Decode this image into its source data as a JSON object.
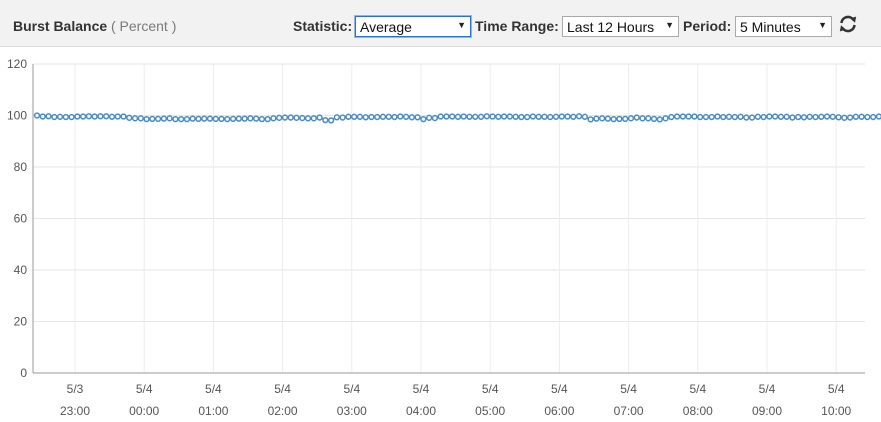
{
  "header": {
    "title": "Burst Balance",
    "unit": "( Percent )",
    "statistic_label": "Statistic:",
    "statistic_value": "Average",
    "time_range_label": "Time Range:",
    "time_range_value": "Last 12 Hours",
    "period_label": "Period:",
    "period_value": "5 Minutes",
    "refresh_icon": "refresh-icon"
  },
  "chart_data": {
    "type": "line",
    "ylim": [
      0,
      120
    ],
    "yticks": [
      "0",
      "20",
      "40",
      "60",
      "80",
      "100",
      "120"
    ],
    "xticks": [
      {
        "date": "5/3",
        "time": "23:00"
      },
      {
        "date": "5/4",
        "time": "00:00"
      },
      {
        "date": "5/4",
        "time": "01:00"
      },
      {
        "date": "5/4",
        "time": "02:00"
      },
      {
        "date": "5/4",
        "time": "03:00"
      },
      {
        "date": "5/4",
        "time": "04:00"
      },
      {
        "date": "5/4",
        "time": "05:00"
      },
      {
        "date": "5/4",
        "time": "06:00"
      },
      {
        "date": "5/4",
        "time": "07:00"
      },
      {
        "date": "5/4",
        "time": "08:00"
      },
      {
        "date": "5/4",
        "time": "09:00"
      },
      {
        "date": "5/4",
        "time": "10:00"
      }
    ],
    "x_start": "5/3 22:30",
    "x_interval": "5 Minutes",
    "series": [
      {
        "color": "#4a8ac4",
        "values": [
          100,
          99.6,
          99.7,
          99.4,
          99.5,
          99.4,
          99.4,
          99.6,
          99.6,
          99.7,
          99.6,
          99.7,
          99.7,
          99.5,
          99.6,
          99.6,
          99.1,
          98.9,
          98.9,
          98.6,
          98.7,
          98.7,
          98.8,
          98.9,
          98.6,
          98.6,
          98.6,
          98.8,
          98.7,
          98.8,
          98.8,
          98.7,
          98.7,
          98.6,
          98.7,
          98.8,
          98.8,
          98.9,
          98.8,
          98.6,
          98.6,
          98.9,
          99.1,
          99.2,
          99.2,
          99.1,
          99.0,
          98.9,
          98.9,
          99.2,
          98.2,
          98.1,
          99.3,
          99.2,
          99.5,
          99.5,
          99.5,
          99.3,
          99.4,
          99.4,
          99.5,
          99.5,
          99.4,
          99.6,
          99.5,
          99.3,
          99.3,
          98.6,
          99.1,
          99.0,
          99.6,
          99.6,
          99.6,
          99.5,
          99.6,
          99.5,
          99.5,
          99.5,
          99.7,
          99.6,
          99.5,
          99.6,
          99.6,
          99.5,
          99.4,
          99.4,
          99.6,
          99.5,
          99.5,
          99.4,
          99.5,
          99.6,
          99.6,
          99.5,
          99.7,
          99.5,
          98.5,
          98.8,
          98.9,
          98.8,
          98.6,
          98.7,
          98.7,
          98.9,
          99.2,
          98.9,
          98.9,
          98.7,
          98.5,
          98.9,
          99.4,
          99.6,
          99.6,
          99.6,
          99.6,
          99.4,
          99.4,
          99.4,
          99.6,
          99.4,
          99.5,
          99.4,
          99.5,
          99.2,
          99.2,
          99.5,
          99.4,
          99.6,
          99.6,
          99.5,
          99.5,
          99.2,
          99.4,
          99.3,
          99.5,
          99.4,
          99.5,
          99.6,
          99.5,
          99.3,
          99.1,
          99.2,
          99.5,
          99.5,
          99.4,
          99.4,
          99.6,
          99.4,
          99.6,
          99.6,
          99.4,
          99.6,
          99.5,
          99.6
        ]
      }
    ]
  }
}
